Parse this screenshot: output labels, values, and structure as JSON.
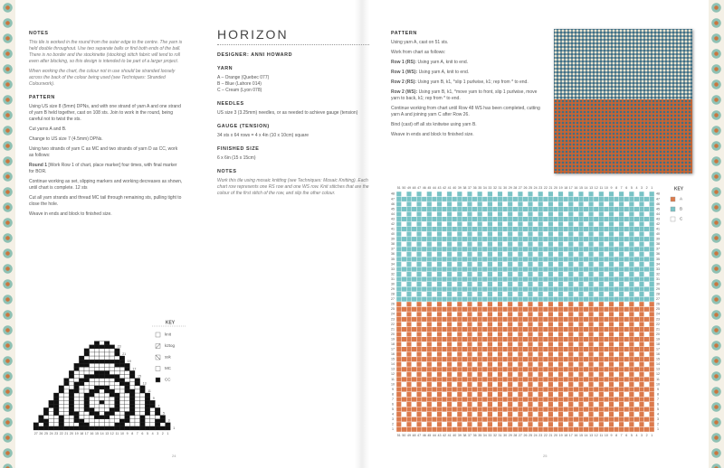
{
  "left_page": {
    "notes": {
      "heading": "NOTES",
      "paragraphs": [
        "This tile is worked in the round from the outer edge to the centre. The yarn is held double throughout. Use two separate balls or find both ends of the ball. There is no border and the stockinette (stocking) stitch fabric will tend to roll even after blocking, so this design is intended to be part of a larger project.",
        "When working the chart, the colour not in use should be stranded loosely across the back of the colour being used (see Techniques: Stranded Colourwork)."
      ]
    },
    "pattern": {
      "heading": "PATTERN",
      "paragraphs": [
        {
          "text": "Using US size 8 (5mm) DPNs, and with one strand of yarn A and one strand of yarn B held together, cast on 108 sts. Join to work in the round, being careful not to twist the sts."
        },
        {
          "text": "Cut yarns A and B."
        },
        {
          "text": "Change to US size 7 (4.5mm) DPNs."
        },
        {
          "text": "Using two strands of yarn C as MC and two strands of yarn D as CC, work as follows:"
        },
        {
          "label": "Round 1",
          "text": "[Work Row 1 of chart, place marker] four times, with final marker for BOR."
        },
        {
          "text": "Continue working as set, slipping markers and working decreases as shown, until chart is complete. 12 sts"
        },
        {
          "text": "Cut all yarn strands and thread MC tail through remaining sts, pulling tight to close the hole."
        },
        {
          "text": "Weave in ends and block to finished size."
        }
      ]
    },
    "key": {
      "heading": "KEY",
      "items": [
        "knit",
        "k2tog",
        "ssk",
        "MC",
        "CC"
      ]
    },
    "chart": {
      "columns": [
        27,
        26,
        25,
        24,
        23,
        22,
        21,
        20,
        19,
        18,
        17,
        16,
        15,
        14,
        13,
        12,
        11,
        10,
        9,
        8,
        7,
        6,
        5,
        4,
        3,
        2,
        1
      ],
      "rows": [
        1,
        3,
        5,
        7,
        9,
        11,
        13,
        15,
        17,
        19,
        21,
        23
      ]
    },
    "page_number": "24"
  },
  "right_page": {
    "title": "HORIZON",
    "designer": "DESIGNER: ANNI HOWARD",
    "yarn": {
      "heading": "YARN",
      "lines": [
        "A – Orange (Quebec 077)",
        "B – Blue (Lahore 014)",
        "C – Cream (Lyon 078)"
      ]
    },
    "needles": {
      "heading": "NEEDLES",
      "text": "US size 3 (3.25mm) needles, or as needed to achieve gauge (tension)"
    },
    "gauge": {
      "heading": "GAUGE (TENSION)",
      "text": "34 sts x 64 rows = 4 x 4in (10 x 10cm) square"
    },
    "finished_size": {
      "heading": "FINISHED SIZE",
      "text": "6 x 6in (15 x 15cm)"
    },
    "notes": {
      "heading": "NOTES",
      "text": "Work this tile using mosaic knitting (see Techniques: Mosaic Knitting). Each chart row represents one RS row and one WS row. Knit stitches that are the colour of the first stitch of the row, and slip the other colour."
    },
    "pattern": {
      "heading": "PATTERN",
      "paragraphs": [
        {
          "text": "Using yarn A, cast on 51 sts."
        },
        {
          "text": "Work from chart as follows:"
        },
        {
          "label": "Row 1 (RS):",
          "text": "Using yarn A, knit to end."
        },
        {
          "label": "Row 1 (WS):",
          "text": "Using yarn A, knit to end."
        },
        {
          "label": "Row 2 (RS):",
          "text": "Using yarn B, k1, *slip 1 purlwise, k1; rep from * to end."
        },
        {
          "label": "Row 2 (WS):",
          "text": "Using yarn B, k1, *move yarn to front, slip 1 purlwise, move yarn to back, k1; rep from * to end."
        },
        {
          "text": "Continue working from chart until Row 48 WS has been completed, cutting yarn A and joining yarn C after Row 26."
        },
        {
          "text": "Bind (cast) off all sts knitwise using yarn B."
        },
        {
          "text": "Weave in ends and block to finished size."
        }
      ]
    },
    "chart": {
      "columns": [
        51,
        50,
        49,
        48,
        47,
        46,
        45,
        44,
        43,
        42,
        41,
        40,
        39,
        38,
        37,
        36,
        35,
        34,
        33,
        32,
        31,
        30,
        29,
        28,
        27,
        26,
        25,
        24,
        23,
        22,
        21,
        20,
        19,
        18,
        17,
        16,
        15,
        14,
        13,
        12,
        11,
        10,
        9,
        8,
        7,
        6,
        5,
        4,
        3,
        2,
        1
      ],
      "rows": [
        1,
        2,
        3,
        4,
        5,
        6,
        7,
        8,
        9,
        10,
        11,
        12,
        13,
        14,
        15,
        16,
        17,
        18,
        19,
        20,
        21,
        22,
        23,
        24,
        25,
        26,
        27,
        28,
        29,
        30,
        31,
        32,
        33,
        34,
        35,
        36,
        37,
        38,
        39,
        40,
        41,
        42,
        43,
        44,
        45,
        46,
        47,
        48
      ]
    },
    "key": {
      "heading": "KEY",
      "items": [
        {
          "label": "A",
          "color": "#dc7a4c"
        },
        {
          "label": "B",
          "color": "#79c3c6"
        },
        {
          "label": "C",
          "color": "#ffffff"
        }
      ]
    },
    "page_number": "25"
  }
}
